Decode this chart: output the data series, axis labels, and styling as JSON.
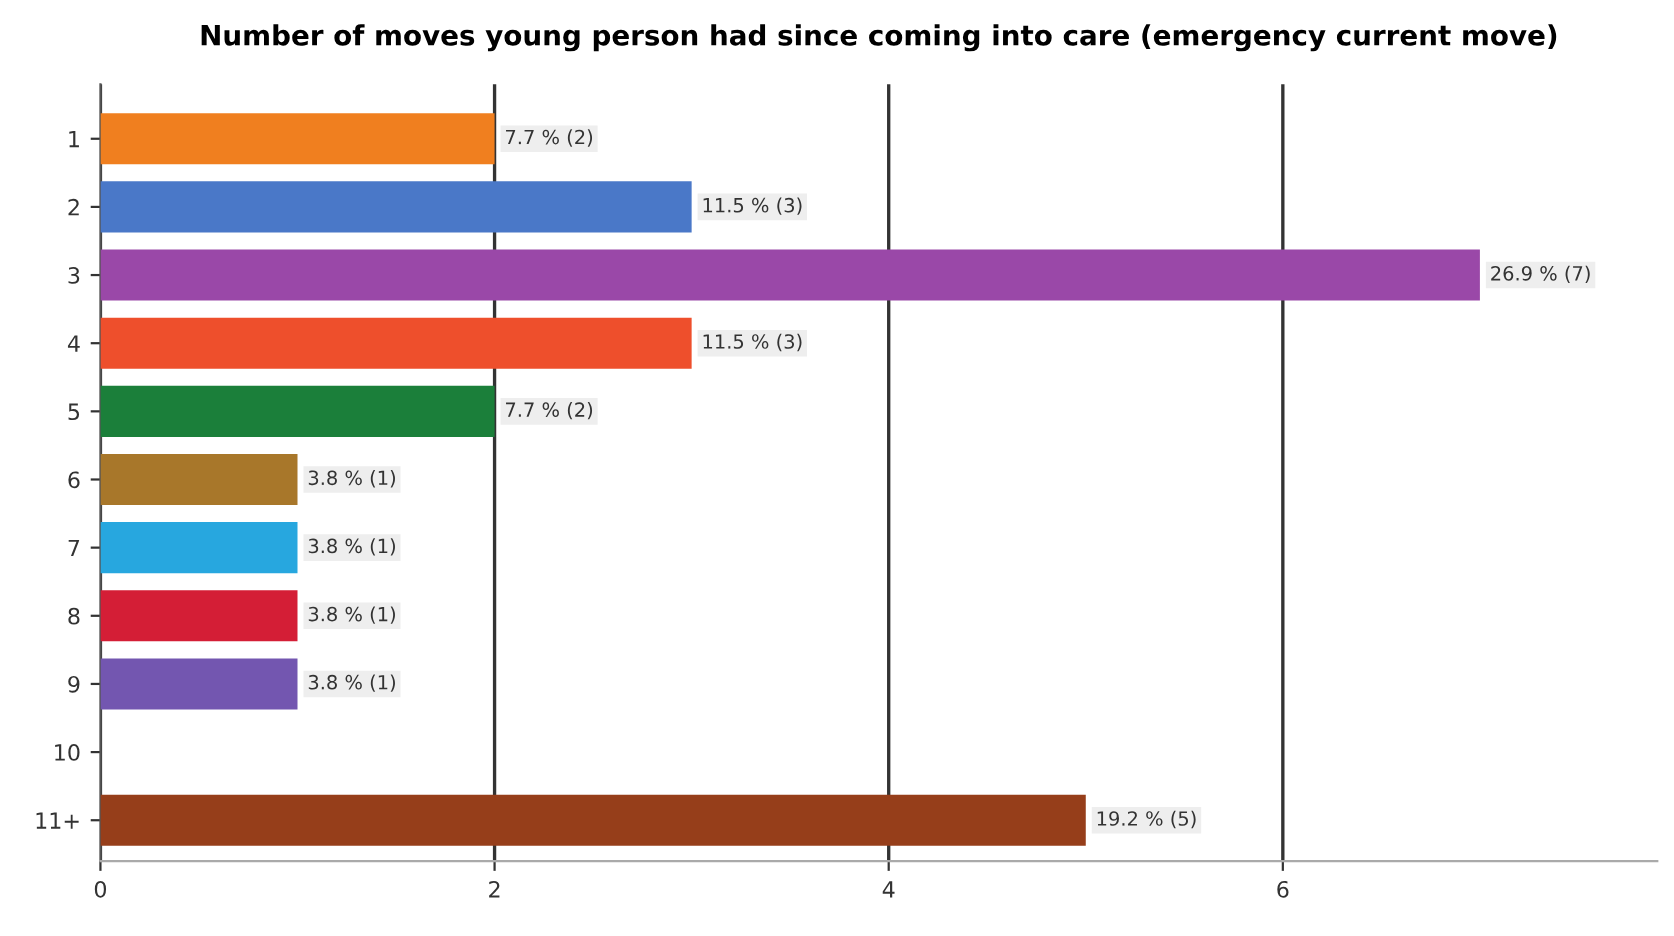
{
  "chart_data": {
    "type": "bar",
    "orientation": "horizontal",
    "title": "Number of moves young person had since coming into care (emergency current move)",
    "categories": [
      "1",
      "2",
      "3",
      "4",
      "5",
      "6",
      "7",
      "8",
      "9",
      "10",
      "11+"
    ],
    "values": [
      2,
      3,
      7,
      3,
      2,
      1,
      1,
      1,
      1,
      0,
      5
    ],
    "colors": [
      "#f07f1f",
      "#4a78c8",
      "#9a48a8",
      "#ee4f2c",
      "#1b7f3a",
      "#a8772a",
      "#27a7df",
      "#d41e36",
      "#7356b0",
      "#888888",
      "#963e1a"
    ],
    "value_labels": [
      "7.7 % (2)",
      "11.5 % (3)",
      "26.9 % (7)",
      "11.5 % (3)",
      "7.7 % (2)",
      "3.8 % (1)",
      "3.8 % (1)",
      "3.8 % (1)",
      "3.8 % (1)",
      null,
      "19.2 % (5)"
    ],
    "xlim": [
      0,
      7.9
    ],
    "xticks": [
      0,
      2,
      4,
      6
    ],
    "grid": "x"
  }
}
